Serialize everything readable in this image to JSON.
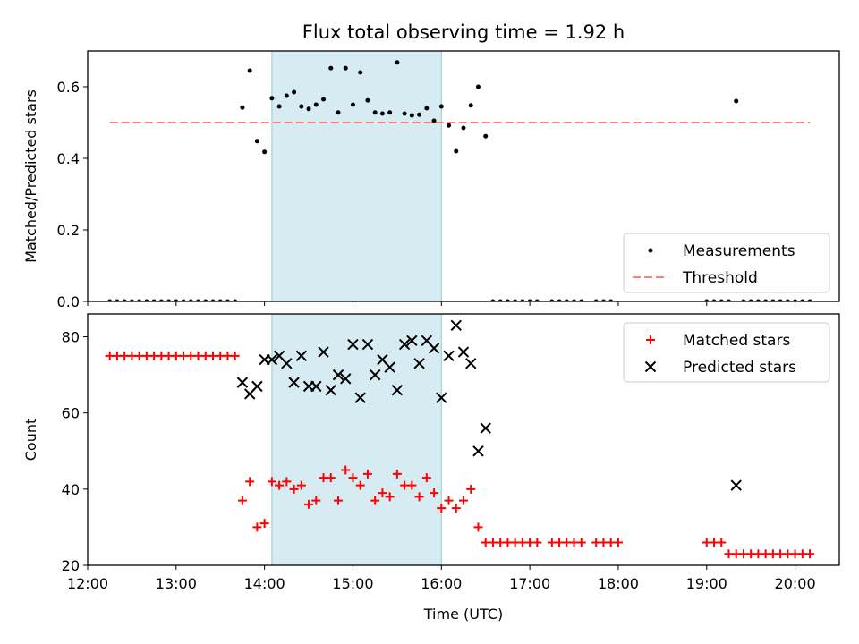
{
  "title": "Flux total observing time = 1.92 h",
  "chart_data": [
    {
      "type": "scatter",
      "ylabel": "Matched/Predicted stars",
      "xlim": [
        "12:00",
        "20:30"
      ],
      "ylim": [
        0,
        0.7
      ],
      "yticks": [
        "0.0",
        "0.2",
        "0.4",
        "0.6"
      ],
      "shaded_span": [
        "14:05",
        "16:00"
      ],
      "threshold": 0.5,
      "threshold_x": [
        "12:15",
        "20:10"
      ],
      "legend_placement": "lower right",
      "legend": [
        "Measurements",
        "Threshold"
      ],
      "series": [
        {
          "name": "Measurements",
          "color": "#000000",
          "points": [
            [
              "12:15",
              0
            ],
            [
              "12:20",
              0
            ],
            [
              "12:25",
              0
            ],
            [
              "12:30",
              0
            ],
            [
              "12:35",
              0
            ],
            [
              "12:40",
              0
            ],
            [
              "12:45",
              0
            ],
            [
              "12:50",
              0
            ],
            [
              "12:55",
              0
            ],
            [
              "13:00",
              0
            ],
            [
              "13:05",
              0
            ],
            [
              "13:10",
              0
            ],
            [
              "13:15",
              0
            ],
            [
              "13:20",
              0
            ],
            [
              "13:25",
              0
            ],
            [
              "13:30",
              0
            ],
            [
              "13:35",
              0
            ],
            [
              "13:40",
              0
            ],
            [
              "13:45",
              0.542
            ],
            [
              "13:50",
              0.645
            ],
            [
              "13:55",
              0.448
            ],
            [
              "14:00",
              0.418
            ],
            [
              "14:05",
              0.568
            ],
            [
              "14:10",
              0.545
            ],
            [
              "14:15",
              0.575
            ],
            [
              "14:20",
              0.585
            ],
            [
              "14:25",
              0.545
            ],
            [
              "14:30",
              0.538
            ],
            [
              "14:35",
              0.55
            ],
            [
              "14:40",
              0.565
            ],
            [
              "14:45",
              0.652
            ],
            [
              "14:50",
              0.528
            ],
            [
              "14:55",
              0.652
            ],
            [
              "15:00",
              0.55
            ],
            [
              "15:05",
              0.64
            ],
            [
              "15:10",
              0.562
            ],
            [
              "15:15",
              0.528
            ],
            [
              "15:20",
              0.525
            ],
            [
              "15:25",
              0.528
            ],
            [
              "15:30",
              0.668
            ],
            [
              "15:35",
              0.525
            ],
            [
              "15:40",
              0.52
            ],
            [
              "15:45",
              0.522
            ],
            [
              "15:50",
              0.54
            ],
            [
              "15:55",
              0.505
            ],
            [
              "16:00",
              0.545
            ],
            [
              "16:05",
              0.492
            ],
            [
              "16:10",
              0.42
            ],
            [
              "16:15",
              0.485
            ],
            [
              "16:20",
              0.548
            ],
            [
              "16:25",
              0.6
            ],
            [
              "16:30",
              0.462
            ],
            [
              "16:35",
              0
            ],
            [
              "16:40",
              0
            ],
            [
              "16:45",
              0
            ],
            [
              "16:50",
              0
            ],
            [
              "16:55",
              0
            ],
            [
              "17:00",
              0
            ],
            [
              "17:05",
              0
            ],
            [
              "17:15",
              0
            ],
            [
              "17:20",
              0
            ],
            [
              "17:25",
              0
            ],
            [
              "17:30",
              0
            ],
            [
              "17:35",
              0
            ],
            [
              "17:45",
              0
            ],
            [
              "17:50",
              0
            ],
            [
              "17:55",
              0
            ],
            [
              "19:00",
              0
            ],
            [
              "19:05",
              0
            ],
            [
              "19:10",
              0
            ],
            [
              "19:15",
              0
            ],
            [
              "19:20",
              0.56
            ],
            [
              "19:25",
              0
            ],
            [
              "19:30",
              0
            ],
            [
              "19:35",
              0
            ],
            [
              "19:40",
              0
            ],
            [
              "19:45",
              0
            ],
            [
              "19:50",
              0
            ],
            [
              "19:55",
              0
            ],
            [
              "20:00",
              0
            ],
            [
              "20:05",
              0
            ],
            [
              "20:10",
              0
            ]
          ]
        },
        {
          "name": "Threshold",
          "color": "#ff7f7f"
        }
      ]
    },
    {
      "type": "scatter",
      "xlabel": "Time (UTC)",
      "ylabel": "Count",
      "xlim": [
        "12:00",
        "20:30"
      ],
      "ylim": [
        20,
        86
      ],
      "yticks": [
        "20",
        "40",
        "60",
        "80"
      ],
      "xticks": [
        "12:00",
        "13:00",
        "14:00",
        "15:00",
        "16:00",
        "17:00",
        "18:00",
        "19:00",
        "20:00"
      ],
      "shaded_span": [
        "14:05",
        "16:00"
      ],
      "legend_placement": "upper right",
      "legend": [
        "Matched stars",
        "Predicted stars"
      ],
      "series": [
        {
          "name": "Matched stars",
          "color": "#ff0000",
          "marker": "plus",
          "points": [
            [
              "12:15",
              75
            ],
            [
              "12:20",
              75
            ],
            [
              "12:25",
              75
            ],
            [
              "12:30",
              75
            ],
            [
              "12:35",
              75
            ],
            [
              "12:40",
              75
            ],
            [
              "12:45",
              75
            ],
            [
              "12:50",
              75
            ],
            [
              "12:55",
              75
            ],
            [
              "13:00",
              75
            ],
            [
              "13:05",
              75
            ],
            [
              "13:10",
              75
            ],
            [
              "13:15",
              75
            ],
            [
              "13:20",
              75
            ],
            [
              "13:25",
              75
            ],
            [
              "13:30",
              75
            ],
            [
              "13:35",
              75
            ],
            [
              "13:40",
              75
            ],
            [
              "13:45",
              37
            ],
            [
              "13:50",
              42
            ],
            [
              "13:55",
              30
            ],
            [
              "14:00",
              31
            ],
            [
              "14:05",
              42
            ],
            [
              "14:10",
              41
            ],
            [
              "14:15",
              42
            ],
            [
              "14:20",
              40
            ],
            [
              "14:25",
              41
            ],
            [
              "14:30",
              36
            ],
            [
              "14:35",
              37
            ],
            [
              "14:40",
              43
            ],
            [
              "14:45",
              43
            ],
            [
              "14:50",
              37
            ],
            [
              "14:55",
              45
            ],
            [
              "15:00",
              43
            ],
            [
              "15:05",
              41
            ],
            [
              "15:10",
              44
            ],
            [
              "15:15",
              37
            ],
            [
              "15:20",
              39
            ],
            [
              "15:25",
              38
            ],
            [
              "15:30",
              44
            ],
            [
              "15:35",
              41
            ],
            [
              "15:40",
              41
            ],
            [
              "15:45",
              38
            ],
            [
              "15:50",
              43
            ],
            [
              "15:55",
              39
            ],
            [
              "16:00",
              35
            ],
            [
              "16:05",
              37
            ],
            [
              "16:10",
              35
            ],
            [
              "16:15",
              37
            ],
            [
              "16:20",
              40
            ],
            [
              "16:25",
              30
            ],
            [
              "16:30",
              26
            ],
            [
              "16:35",
              26
            ],
            [
              "16:40",
              26
            ],
            [
              "16:45",
              26
            ],
            [
              "16:50",
              26
            ],
            [
              "16:55",
              26
            ],
            [
              "17:00",
              26
            ],
            [
              "17:05",
              26
            ],
            [
              "17:15",
              26
            ],
            [
              "17:20",
              26
            ],
            [
              "17:25",
              26
            ],
            [
              "17:30",
              26
            ],
            [
              "17:35",
              26
            ],
            [
              "17:45",
              26
            ],
            [
              "17:50",
              26
            ],
            [
              "17:55",
              26
            ],
            [
              "18:00",
              26
            ],
            [
              "19:00",
              26
            ],
            [
              "19:05",
              26
            ],
            [
              "19:10",
              26
            ],
            [
              "19:15",
              23
            ],
            [
              "19:20",
              23
            ],
            [
              "19:25",
              23
            ],
            [
              "19:30",
              23
            ],
            [
              "19:35",
              23
            ],
            [
              "19:40",
              23
            ],
            [
              "19:45",
              23
            ],
            [
              "19:50",
              23
            ],
            [
              "19:55",
              23
            ],
            [
              "20:00",
              23
            ],
            [
              "20:05",
              23
            ],
            [
              "20:10",
              23
            ]
          ]
        },
        {
          "name": "Predicted stars",
          "color": "#000000",
          "marker": "x",
          "points": [
            [
              "13:45",
              68
            ],
            [
              "13:50",
              65
            ],
            [
              "13:55",
              67
            ],
            [
              "14:00",
              74
            ],
            [
              "14:05",
              74
            ],
            [
              "14:10",
              75
            ],
            [
              "14:15",
              73
            ],
            [
              "14:20",
              68
            ],
            [
              "14:25",
              75
            ],
            [
              "14:30",
              67
            ],
            [
              "14:35",
              67
            ],
            [
              "14:40",
              76
            ],
            [
              "14:45",
              66
            ],
            [
              "14:50",
              70
            ],
            [
              "14:55",
              69
            ],
            [
              "15:00",
              78
            ],
            [
              "15:05",
              64
            ],
            [
              "15:10",
              78
            ],
            [
              "15:15",
              70
            ],
            [
              "15:20",
              74
            ],
            [
              "15:25",
              72
            ],
            [
              "15:30",
              66
            ],
            [
              "15:35",
              78
            ],
            [
              "15:40",
              79
            ],
            [
              "15:45",
              73
            ],
            [
              "15:50",
              79
            ],
            [
              "15:55",
              77
            ],
            [
              "16:00",
              64
            ],
            [
              "16:05",
              75
            ],
            [
              "16:10",
              83
            ],
            [
              "16:15",
              76
            ],
            [
              "16:20",
              73
            ],
            [
              "16:25",
              50
            ],
            [
              "16:30",
              56
            ],
            [
              "19:20",
              41
            ]
          ]
        }
      ]
    }
  ]
}
